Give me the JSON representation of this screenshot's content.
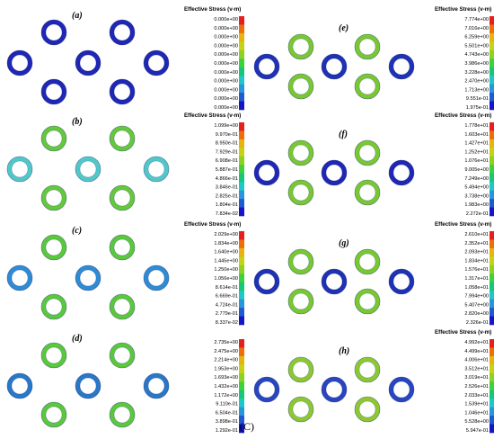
{
  "caption": "(C)",
  "colors": {
    "scale": [
      "#1414c8",
      "#1e5ad2",
      "#2896dc",
      "#1ec8c8",
      "#14c878",
      "#3cd23c",
      "#8cd21e",
      "#c8d214",
      "#e6b40a",
      "#f06e0a",
      "#e61e1e"
    ]
  },
  "panels": [
    {
      "label": "(a)",
      "legend": {
        "title": "Effective Stress (v-m)",
        "ticks": [
          "0.000e+00",
          "0.000e+00",
          "0.000e+00",
          "0.000e+00",
          "0.000e+00",
          "0.000e+00",
          "0.000e+00",
          "0.000e+00",
          "0.000e+00",
          "0.000e+00",
          "0.000e+00"
        ]
      },
      "rings": {
        "outer_color": "#1e28b4",
        "inner_color": "#1e28b4",
        "center_color": "#1e28b4"
      }
    },
    {
      "label": "(b)",
      "legend": {
        "title": "Effective Stress (v-m)",
        "ticks": [
          "1.099e+00",
          "9.970e-01",
          "8.950e-01",
          "7.929e-01",
          "6.908e-01",
          "5.887e-01",
          "4.866e-01",
          "3.846e-01",
          "2.825e-01",
          "1.804e-01",
          "7.834e-02"
        ]
      },
      "rings": {
        "outer_color": "#50c8c8",
        "inner_color": "#64c83c",
        "center_color": "#50c8c8"
      }
    },
    {
      "label": "(c)",
      "legend": {
        "title": "Effective Stress (v-m)",
        "ticks": [
          "2.029e+00",
          "1.834e+00",
          "1.640e+00",
          "1.445e+00",
          "1.250e+00",
          "1.056e+00",
          "8.614e-01",
          "6.669e-01",
          "4.724e-01",
          "2.779e-01",
          "8.337e-02"
        ]
      },
      "rings": {
        "outer_color": "#2d8cd2",
        "inner_color": "#5ac83c",
        "center_color": "#2d8cd2"
      }
    },
    {
      "label": "(d)",
      "legend": {
        "title": "",
        "ticks": [
          "2.735e+00",
          "2.475e+00",
          "2.214e+00",
          "1.953e+00",
          "1.693e+00",
          "1.432e+00",
          "1.172e+00",
          "9.110e-01",
          "6.504e-01",
          "3.898e-01",
          "1.292e-01"
        ]
      },
      "rings": {
        "outer_color": "#2878c8",
        "inner_color": "#5ac83c",
        "center_color": "#2878c8"
      }
    },
    {
      "label": "(e)",
      "legend": {
        "title": "Effective Stress (v-m)",
        "ticks": [
          "7.774e+00",
          "7.016e+00",
          "6.259e+00",
          "5.501e+00",
          "4.743e+00",
          "3.986e+00",
          "3.228e+00",
          "2.470e+00",
          "1.713e+00",
          "9.551e-01",
          "1.975e-01"
        ]
      },
      "rings": {
        "outer_color": "#1e32b4",
        "inner_color": "#78c832",
        "center_color": "#1e32b4"
      }
    },
    {
      "label": "(f)",
      "legend": {
        "title": "Effective Stress (v-m)",
        "ticks": [
          "1.778e+01",
          "1.603e+01",
          "1.427e+01",
          "1.252e+01",
          "1.076e+01",
          "9.005e+00",
          "7.249e+00",
          "5.494e+00",
          "3.738e+00",
          "1.983e+00",
          "2.272e-01"
        ]
      },
      "rings": {
        "outer_color": "#1e28b4",
        "inner_color": "#78c832",
        "center_color": "#1e28b4"
      }
    },
    {
      "label": "(g)",
      "legend": {
        "title": "Effective Stress (v-m)",
        "ticks": [
          "2.610e+01",
          "2.352e+01",
          "2.093e+01",
          "1.834e+01",
          "1.576e+01",
          "1.317e+01",
          "1.058e+01",
          "7.994e+00",
          "5.407e+00",
          "2.820e+00",
          "2.326e-01"
        ]
      },
      "rings": {
        "outer_color": "#1e32b4",
        "inner_color": "#78c832",
        "center_color": "#1e32b4"
      }
    },
    {
      "label": "(h)",
      "legend": {
        "title": "Effective Stress (v-m)",
        "ticks": [
          "4.992e+01",
          "4.499e+01",
          "4.006e+01",
          "3.512e+01",
          "3.019e+01",
          "2.526e+01",
          "2.033e+01",
          "1.539e+01",
          "1.046e+01",
          "5.528e+00",
          "5.947e-01"
        ]
      },
      "rings": {
        "outer_color": "#2846be",
        "inner_color": "#8cc832",
        "center_color": "#2846be"
      }
    }
  ]
}
